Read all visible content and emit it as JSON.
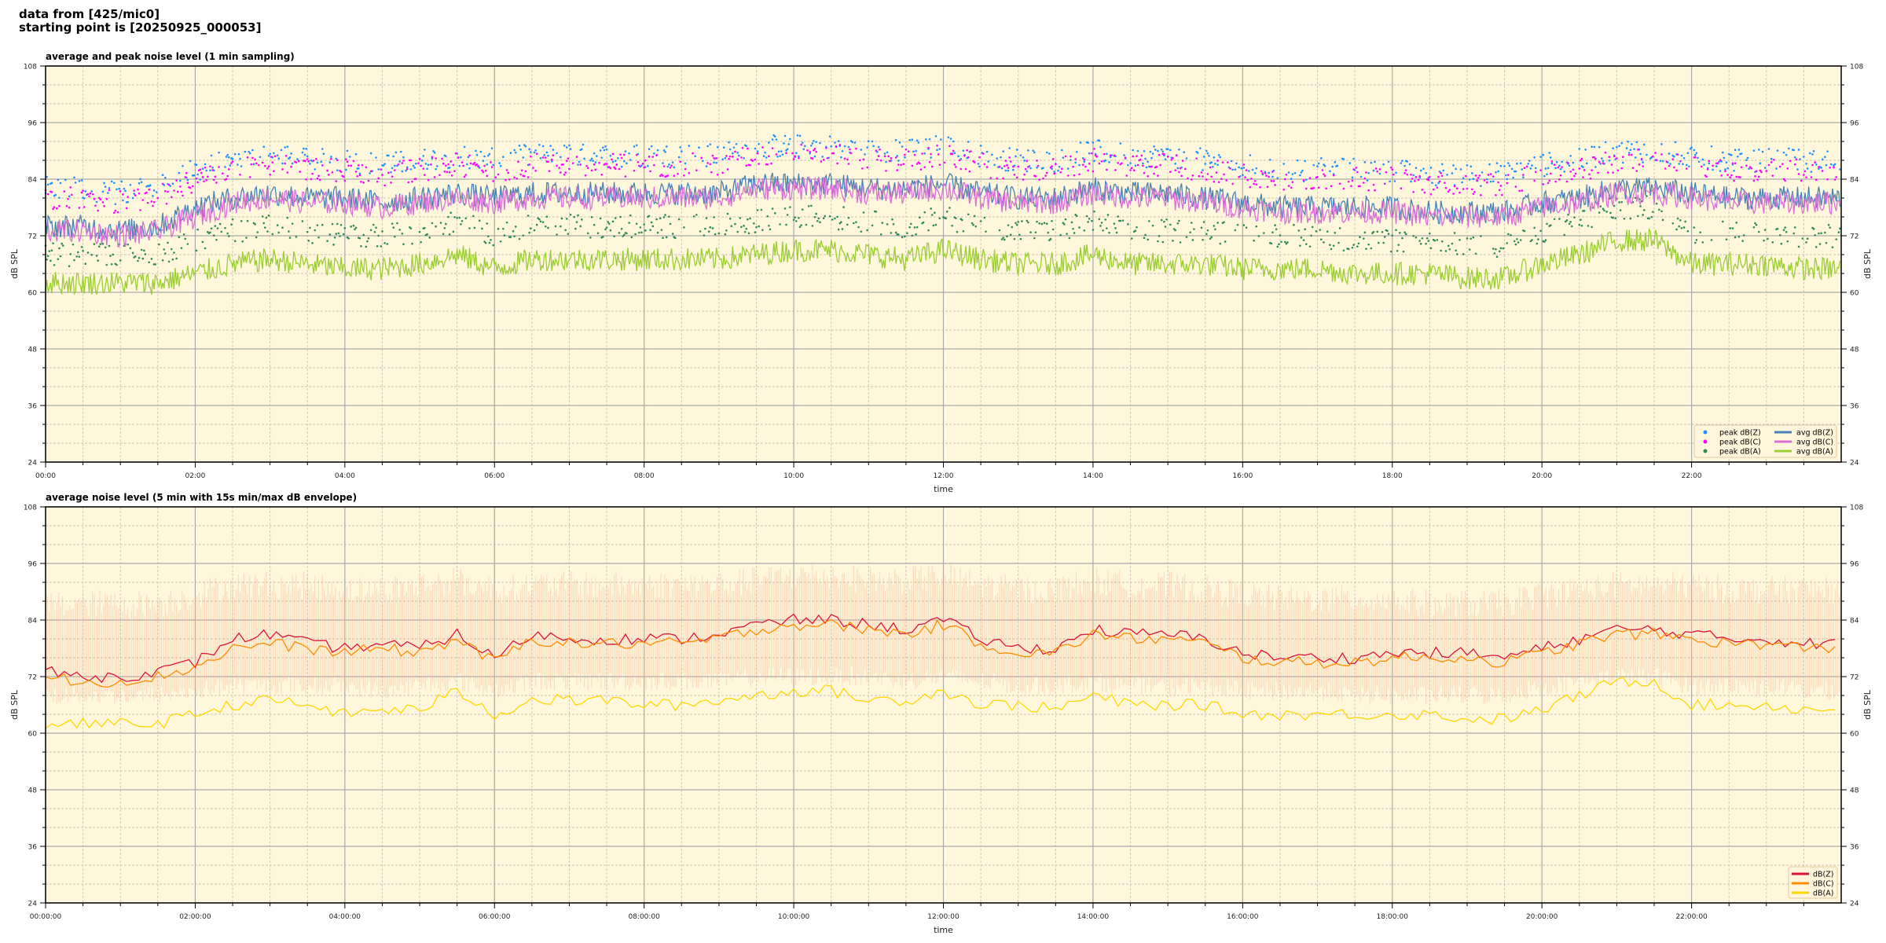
{
  "suptitle": {
    "line1": "data from [425/mic0]",
    "line2": "starting point is [20250925_000053]"
  },
  "chart_data": [
    {
      "type": "line",
      "title": "average and peak noise level (1 min sampling)",
      "xlabel": "time",
      "ylabel": "dB SPL",
      "xlim_hours": [
        0,
        24
      ],
      "ylim": [
        24,
        108
      ],
      "yticks": [
        "24",
        "36",
        "48",
        "60",
        "72",
        "84",
        "96",
        "108"
      ],
      "xticks": [
        "00:00",
        "02:00",
        "04:00",
        "06:00",
        "08:00",
        "10:00",
        "12:00",
        "14:00",
        "16:00",
        "18:00",
        "20:00",
        "22:00"
      ],
      "grid": true,
      "background": "#fff7dc",
      "legend": "lower-right",
      "x_hours_step": 0.5,
      "series": [
        {
          "name": "peak dB(Z)",
          "kind": "scatter",
          "color": "#1e90ff",
          "offset_from": "avg dB(Z)",
          "values": [
            82,
            82,
            81,
            82,
            86,
            88,
            89,
            88,
            88,
            87,
            88,
            89,
            88,
            89,
            89,
            89,
            89,
            89,
            89,
            91,
            91,
            91,
            90,
            90,
            91,
            89,
            88,
            88,
            90,
            89,
            89,
            88,
            87,
            86,
            86,
            86,
            86,
            85,
            85,
            85,
            87,
            88,
            90,
            90,
            89,
            88,
            88,
            88
          ]
        },
        {
          "name": "peak dB(C)",
          "kind": "scatter",
          "color": "#ff00ff",
          "values": [
            80,
            80,
            79,
            80,
            84,
            86,
            87,
            86,
            86,
            85,
            86,
            87,
            86,
            87,
            87,
            87,
            87,
            87,
            87,
            89,
            89,
            89,
            88,
            88,
            89,
            87,
            86,
            86,
            88,
            87,
            87,
            86,
            85,
            84,
            84,
            84,
            84,
            83,
            83,
            83,
            85,
            86,
            88,
            88,
            87,
            86,
            86,
            86
          ]
        },
        {
          "name": "peak dB(A)",
          "kind": "scatter",
          "color": "#2e8b57",
          "values": [
            68,
            68,
            68,
            68,
            71,
            73,
            74,
            73,
            72,
            72,
            73,
            75,
            72,
            74,
            74,
            74,
            74,
            74,
            74,
            75,
            76,
            76,
            75,
            74,
            76,
            74,
            73,
            73,
            75,
            73,
            73,
            73,
            72,
            72,
            72,
            71,
            71,
            71,
            70,
            70,
            73,
            75,
            78,
            78,
            73,
            73,
            73,
            72
          ]
        },
        {
          "name": "avg dB(Z)",
          "kind": "line",
          "color": "#4682b4",
          "values": [
            74,
            74,
            73,
            74,
            78,
            80,
            81,
            80,
            80,
            79,
            80,
            81,
            80,
            81,
            81,
            81,
            81,
            81,
            81,
            83,
            83,
            83,
            82,
            82,
            83,
            81,
            80,
            80,
            82,
            81,
            81,
            80,
            79,
            78,
            78,
            78,
            78,
            77,
            77,
            77,
            79,
            80,
            82,
            82,
            81,
            80,
            80,
            80
          ]
        },
        {
          "name": "avg dB(C)",
          "kind": "line",
          "color": "#da70d6",
          "values": [
            73,
            73,
            72,
            73,
            76,
            79,
            80,
            79,
            79,
            78,
            79,
            80,
            79,
            80,
            80,
            80,
            80,
            80,
            80,
            82,
            82,
            82,
            81,
            81,
            82,
            80,
            79,
            79,
            81,
            80,
            80,
            79,
            78,
            77,
            77,
            77,
            77,
            76,
            76,
            76,
            78,
            79,
            81,
            81,
            80,
            79,
            79,
            79
          ]
        },
        {
          "name": "avg dB(A)",
          "kind": "line",
          "color": "#9acd32",
          "values": [
            62,
            62,
            62,
            62,
            64,
            66,
            67,
            66,
            65,
            65,
            66,
            68,
            65,
            67,
            67,
            67,
            67,
            67,
            67,
            68,
            69,
            69,
            68,
            67,
            69,
            67,
            66,
            66,
            68,
            66,
            66,
            66,
            65,
            65,
            65,
            64,
            64,
            64,
            63,
            63,
            66,
            68,
            71,
            71,
            66,
            66,
            66,
            65
          ]
        }
      ]
    },
    {
      "type": "line",
      "title": "average noise level (5 min with 15s min/max dB envelope)",
      "xlabel": "time",
      "ylabel": "dB SPL",
      "xlim_hours": [
        0,
        24
      ],
      "ylim": [
        24,
        108
      ],
      "yticks": [
        "24",
        "36",
        "48",
        "60",
        "72",
        "84",
        "96",
        "108"
      ],
      "xticks": [
        "00:00:00",
        "02:00:00",
        "04:00:00",
        "06:00:00",
        "08:00:00",
        "10:00:00",
        "12:00:00",
        "14:00:00",
        "16:00:00",
        "18:00:00",
        "20:00:00",
        "22:00:00"
      ],
      "grid": true,
      "background": "#fff7dc",
      "legend": "lower-right",
      "x_hours_step": 0.5,
      "envelope": {
        "color": "#f4a582",
        "min": [
          68,
          68,
          68,
          68,
          69,
          70,
          70,
          70,
          70,
          69,
          70,
          71,
          69,
          71,
          71,
          71,
          71,
          71,
          71,
          72,
          72,
          72,
          72,
          71,
          72,
          71,
          70,
          70,
          71,
          70,
          70,
          70,
          69,
          69,
          69,
          68,
          68,
          68,
          68,
          68,
          70,
          71,
          72,
          72,
          70,
          70,
          70,
          69
        ],
        "max": [
          88,
          88,
          88,
          88,
          90,
          92,
          92,
          92,
          91,
          91,
          92,
          93,
          91,
          92,
          92,
          92,
          92,
          92,
          92,
          93,
          94,
          94,
          93,
          93,
          94,
          92,
          91,
          91,
          93,
          92,
          92,
          91,
          90,
          89,
          89,
          89,
          89,
          88,
          88,
          88,
          90,
          91,
          92,
          92,
          92,
          91,
          91,
          91
        ]
      },
      "series": [
        {
          "name": "dB(Z)",
          "kind": "line",
          "color": "#dc143c",
          "values": [
            73,
            72,
            72,
            73,
            75,
            80,
            81,
            79,
            78,
            79,
            78,
            81,
            76,
            81,
            80,
            80,
            80,
            80,
            81,
            83,
            84,
            84,
            83,
            82,
            84,
            80,
            78,
            78,
            82,
            81,
            81,
            80,
            77,
            76,
            76,
            76,
            77,
            77,
            77,
            76,
            78,
            80,
            82,
            82,
            81,
            80,
            80,
            79
          ]
        },
        {
          "name": "dB(C)",
          "kind": "line",
          "color": "#ff8c00",
          "values": [
            72,
            71,
            71,
            72,
            74,
            78,
            79,
            78,
            77,
            78,
            77,
            80,
            75,
            80,
            79,
            79,
            79,
            79,
            80,
            82,
            83,
            83,
            82,
            81,
            83,
            79,
            77,
            77,
            81,
            80,
            80,
            79,
            76,
            75,
            75,
            75,
            76,
            76,
            76,
            75,
            77,
            79,
            81,
            81,
            80,
            79,
            79,
            78
          ]
        },
        {
          "name": "dB(A)",
          "kind": "line",
          "color": "#ffd700",
          "values": [
            62,
            62,
            62,
            62,
            64,
            66,
            67,
            66,
            64,
            65,
            65,
            69,
            64,
            67,
            67,
            67,
            66,
            66,
            67,
            68,
            69,
            69,
            67,
            67,
            69,
            66,
            66,
            65,
            68,
            66,
            66,
            66,
            64,
            64,
            64,
            64,
            64,
            64,
            63,
            63,
            65,
            68,
            71,
            71,
            66,
            66,
            66,
            65
          ]
        }
      ]
    }
  ]
}
